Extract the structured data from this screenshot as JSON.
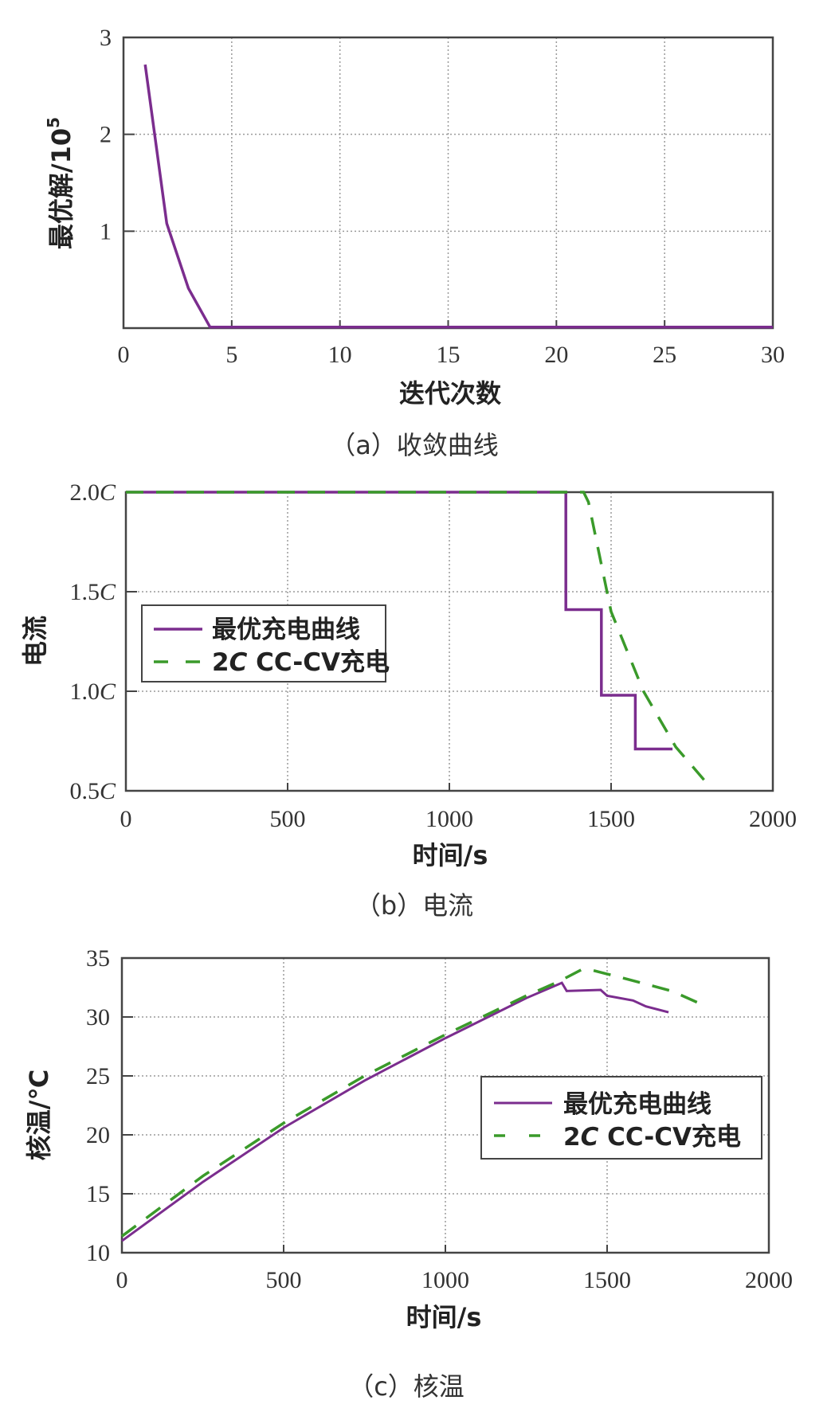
{
  "colors": {
    "optimal": "#7b2d8e",
    "cccv": "#3a9a2a",
    "axis": "#444444",
    "grid": "#9a9a9a"
  },
  "chart_data": [
    {
      "id": "a",
      "type": "line",
      "caption": "（a）收敛曲线",
      "title": "",
      "xlabel": "迭代次数",
      "ylabel": "最优解/10⁵",
      "ylabel_main": "最优解/10",
      "ylabel_sup": "5",
      "xlim": [
        0,
        30
      ],
      "ylim": [
        0,
        3
      ],
      "xticks": [
        "0",
        "5",
        "10",
        "15",
        "20",
        "25",
        "30"
      ],
      "yticks": [
        "1",
        "2",
        "3"
      ],
      "grid": true,
      "series": [
        {
          "name": "收敛曲线",
          "x": [
            1,
            2,
            3,
            4,
            5,
            10,
            15,
            20,
            25,
            30
          ],
          "y": [
            2.72,
            1.08,
            0.41,
            0.01,
            0.01,
            0.01,
            0.01,
            0.01,
            0.01,
            0.01
          ]
        }
      ]
    },
    {
      "id": "b",
      "type": "line",
      "caption": "（b）电流",
      "xlabel": "时间/s",
      "ylabel": "电流",
      "xlim": [
        0,
        2000
      ],
      "ylim": [
        0.5,
        2.0
      ],
      "xticks": [
        "0",
        "500",
        "1000",
        "1500",
        "2000"
      ],
      "yticks": [
        "0.5C",
        "1.0C",
        "1.5C",
        "2.0C"
      ],
      "grid": true,
      "legend_position": "upper-left-middle",
      "series": [
        {
          "name": "最优充电曲线",
          "style": "solid",
          "x": [
            0,
            1360,
            1360,
            1470,
            1470,
            1575,
            1575,
            1690
          ],
          "y": [
            2.0,
            2.0,
            1.41,
            1.41,
            0.98,
            0.98,
            0.71,
            0.71
          ]
        },
        {
          "name": "2C CC-CV充电",
          "style": "dashed",
          "x": [
            0,
            1415,
            1430,
            1500,
            1600,
            1700,
            1790
          ],
          "y": [
            2.0,
            2.0,
            1.95,
            1.4,
            1.0,
            0.72,
            0.55
          ]
        }
      ]
    },
    {
      "id": "c",
      "type": "line",
      "caption": "（c）核温",
      "xlabel": "时间/s",
      "ylabel": "核温/℃",
      "xlim": [
        0,
        2000
      ],
      "ylim": [
        10,
        35
      ],
      "xticks": [
        "0",
        "500",
        "1000",
        "1500",
        "2000"
      ],
      "yticks": [
        "10",
        "15",
        "20",
        "25",
        "30",
        "35"
      ],
      "grid": true,
      "legend_position": "center-right",
      "series": [
        {
          "name": "最优充电曲线",
          "style": "solid",
          "x": [
            0,
            250,
            500,
            750,
            1000,
            1250,
            1360,
            1375,
            1480,
            1500,
            1580,
            1620,
            1690
          ],
          "y": [
            11.0,
            16.0,
            20.6,
            24.6,
            28.2,
            31.6,
            32.9,
            32.2,
            32.3,
            31.8,
            31.4,
            30.9,
            30.4
          ]
        },
        {
          "name": "2C CC-CV充电",
          "style": "dashed",
          "x": [
            0,
            250,
            500,
            750,
            1000,
            1250,
            1350,
            1420,
            1450,
            1550,
            1700,
            1790
          ],
          "y": [
            11.4,
            16.5,
            21.0,
            25.0,
            28.5,
            31.8,
            33.0,
            34.0,
            34.0,
            33.3,
            32.2,
            31.1
          ]
        }
      ]
    }
  ],
  "legend": {
    "optimal_label": "最优充电曲线",
    "cccv_label_prefix": "2",
    "cccv_label_italic": "C",
    "cccv_label_rest": " CC-CV充电"
  },
  "labels": {
    "a_caption": "（a）收敛曲线",
    "a_xlabel": "迭代次数",
    "a_ylabel": "最优解/10",
    "a_ylabel_sup": "5",
    "b_caption": "（b）电流",
    "b_xlabel": "时间/s",
    "b_ylabel": "电流",
    "c_caption": "（c）核温",
    "c_xlabel": "时间/s",
    "c_ylabel": "核温/℃"
  }
}
